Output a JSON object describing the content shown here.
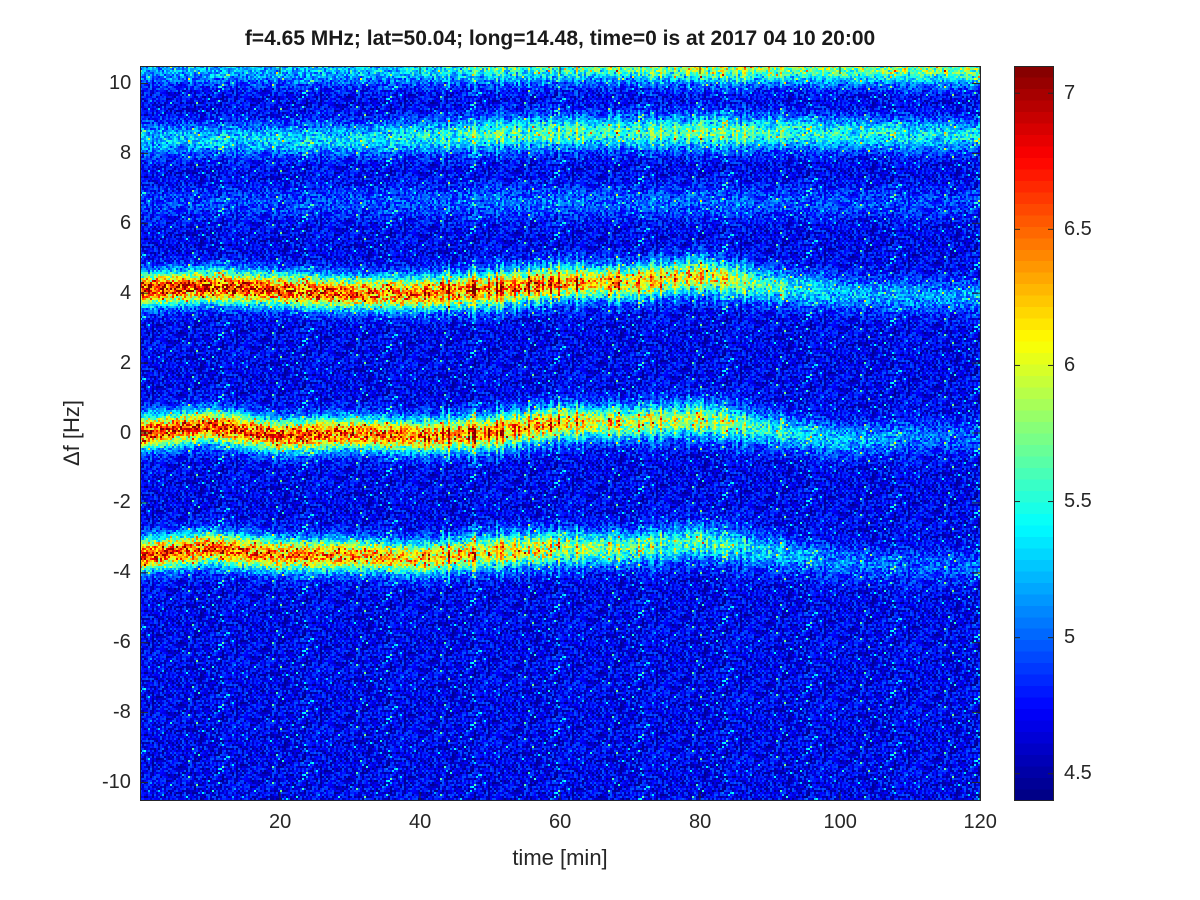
{
  "chart_data": {
    "type": "heatmap",
    "title": "f=4.65 MHz;  lat=50.04; long=14.48, time=0 is at 2017 04 10 20:00",
    "xlabel": "time [min]",
    "ylabel": "Δf [Hz]",
    "xlim": [
      0,
      120
    ],
    "ylim": [
      -10.5,
      10.5
    ],
    "x_ticks": [
      20,
      40,
      60,
      80,
      100,
      120
    ],
    "y_ticks": [
      -10,
      -8,
      -6,
      -4,
      -2,
      0,
      2,
      4,
      6,
      8,
      10
    ],
    "colormap": "jet",
    "colorbar": {
      "range": [
        4.4,
        7.1
      ],
      "ticks": [
        4.5,
        5,
        5.5,
        6,
        6.5,
        7
      ]
    },
    "grid": false,
    "bands": [
      {
        "time": [
          0,
          10,
          20,
          30,
          40,
          50,
          60,
          70,
          80,
          90,
          100,
          110,
          120
        ],
        "center": [
          4.1,
          4.2,
          4.1,
          4.0,
          4.0,
          4.1,
          4.3,
          4.3,
          4.5,
          4.2,
          4.0,
          3.9,
          3.9
        ],
        "intensity": [
          6.9,
          6.9,
          6.8,
          6.7,
          6.6,
          6.5,
          6.4,
          6.3,
          6.0,
          5.6,
          5.3,
          5.2,
          5.2
        ]
      },
      {
        "time": [
          0,
          10,
          20,
          30,
          40,
          50,
          60,
          70,
          80,
          90,
          100,
          110,
          120
        ],
        "center": [
          0.0,
          0.2,
          -0.1,
          0.0,
          -0.1,
          0.0,
          0.3,
          0.3,
          0.4,
          0.1,
          -0.2,
          -0.1,
          -0.1
        ],
        "intensity": [
          6.9,
          6.8,
          6.8,
          6.7,
          6.6,
          6.4,
          6.2,
          6.0,
          5.8,
          5.5,
          5.3,
          5.1,
          5.0
        ]
      },
      {
        "time": [
          0,
          10,
          20,
          30,
          40,
          50,
          60,
          70,
          80,
          90,
          100,
          110,
          120
        ],
        "center": [
          -3.5,
          -3.3,
          -3.5,
          -3.5,
          -3.6,
          -3.4,
          -3.3,
          -3.3,
          -3.1,
          -3.4,
          -3.7,
          -3.8,
          -3.8
        ],
        "intensity": [
          6.8,
          6.7,
          6.6,
          6.5,
          6.3,
          6.1,
          5.9,
          5.7,
          5.5,
          5.3,
          5.1,
          5.0,
          5.0
        ]
      },
      {
        "time": [
          0,
          30,
          60,
          90,
          120
        ],
        "center": [
          8.4,
          8.4,
          8.6,
          8.6,
          8.5
        ],
        "intensity": [
          5.3,
          5.4,
          5.6,
          5.6,
          5.4
        ]
      },
      {
        "time": [
          0,
          60,
          120
        ],
        "center": [
          6.6,
          6.6,
          6.6
        ],
        "intensity": [
          4.9,
          5.0,
          4.9
        ]
      },
      {
        "time": [
          0,
          30,
          60,
          90,
          120
        ],
        "center": [
          10.4,
          10.4,
          10.5,
          10.5,
          10.4
        ],
        "intensity": [
          5.2,
          5.3,
          5.6,
          5.9,
          5.8
        ]
      }
    ],
    "background_level": 4.7
  }
}
